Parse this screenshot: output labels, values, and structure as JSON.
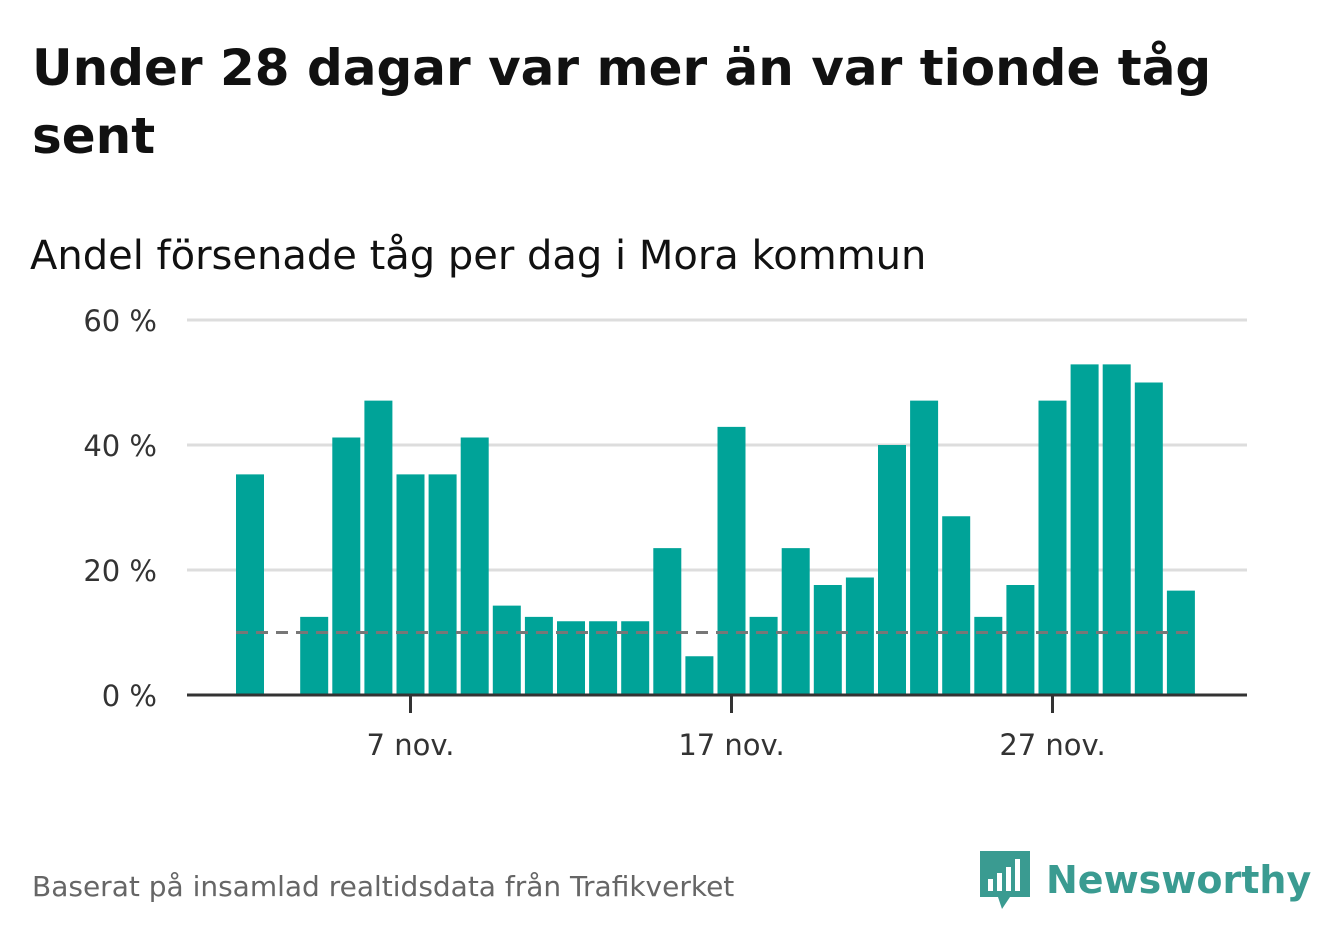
{
  "title": "Under 28 dagar var mer än var tionde tåg sent",
  "subtitle": "Andel försenade tåg per dag i Mora kommun",
  "footer": "Baserat på insamlad realtidsdata från Trafikverket",
  "logo": {
    "text": "Newsworthy",
    "icon": "newsworthy-bar-chart-icon"
  },
  "colors": {
    "bar": "#00a398",
    "reference_line": "#777777",
    "grid": "#dddddd",
    "axis": "#333333",
    "logo": "#3a9b91"
  },
  "chart_data": {
    "type": "bar",
    "x": [
      "2 nov.",
      "3 nov.",
      "4 nov.",
      "5 nov.",
      "6 nov.",
      "7 nov.",
      "8 nov.",
      "9 nov.",
      "10 nov.",
      "11 nov.",
      "12 nov.",
      "13 nov.",
      "14 nov.",
      "15 nov.",
      "16 nov.",
      "17 nov.",
      "18 nov.",
      "19 nov.",
      "20 nov.",
      "21 nov.",
      "22 nov.",
      "23 nov.",
      "24 nov.",
      "25 nov.",
      "26 nov.",
      "27 nov.",
      "28 nov.",
      "29 nov.",
      "30 nov.",
      "1 dec."
    ],
    "values": [
      35.3,
      null,
      12.5,
      41.2,
      47.1,
      35.3,
      35.3,
      41.2,
      14.3,
      12.5,
      11.8,
      11.8,
      11.8,
      23.5,
      6.2,
      42.9,
      12.5,
      23.5,
      17.6,
      18.8,
      40.0,
      47.1,
      28.6,
      12.5,
      17.6,
      47.1,
      52.9,
      52.9,
      50.0,
      16.7
    ],
    "reference_value": 10,
    "ylim": [
      0,
      60
    ],
    "yticks": [
      0,
      20,
      40,
      60
    ],
    "ytick_labels": [
      "0 %",
      "20 %",
      "40 %",
      "60 %"
    ],
    "xtick_labels": [
      {
        "category": "7 nov.",
        "label": "7 nov."
      },
      {
        "category": "17 nov.",
        "label": "17 nov."
      },
      {
        "category": "27 nov.",
        "label": "27 nov."
      }
    ],
    "grid": true,
    "xlabel": "",
    "ylabel": ""
  }
}
